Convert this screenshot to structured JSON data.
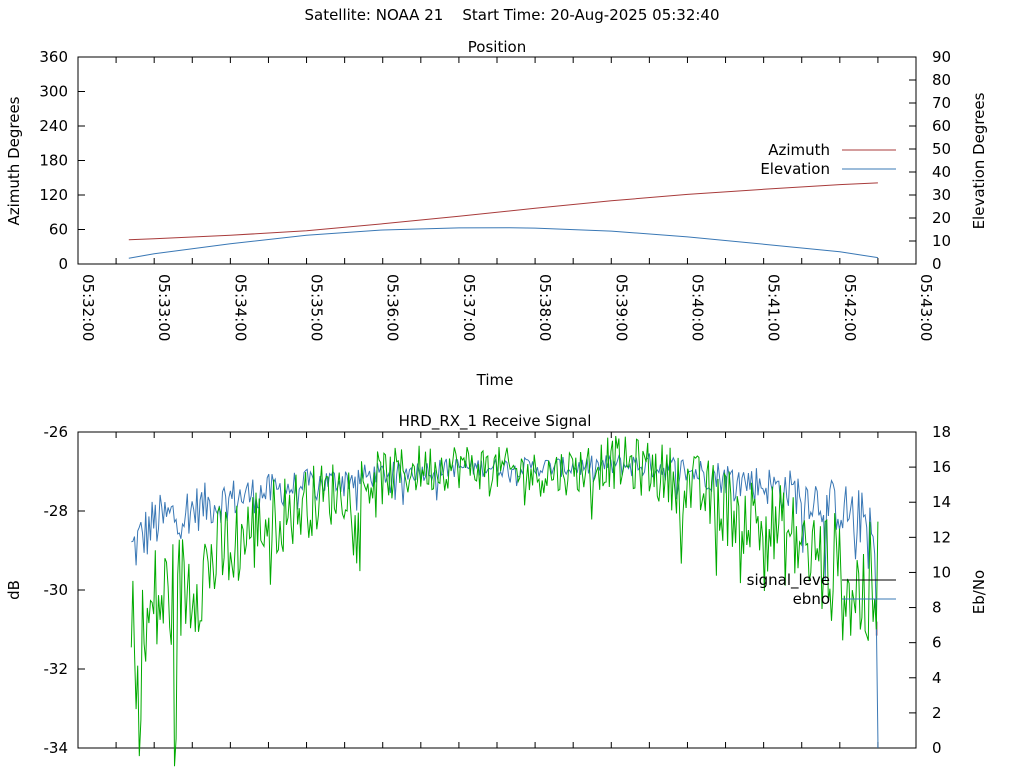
{
  "header": {
    "satellite": "Satellite: NOAA 21",
    "start_time": "Start Time: 20-Aug-2025 05:32:40"
  },
  "chart_data": [
    {
      "type": "line",
      "title": "Position",
      "xlabel": "Time",
      "ylabel": "Azimuth Degrees",
      "y2label": "Elevation Degrees",
      "xlim": [
        "05:32:00",
        "05:43:00"
      ],
      "xticks": [
        "05:32:00",
        "05:33:00",
        "05:34:00",
        "05:35:00",
        "05:36:00",
        "05:37:00",
        "05:38:00",
        "05:39:00",
        "05:40:00",
        "05:41:00",
        "05:42:00",
        "05:43:00"
      ],
      "ylim": [
        0,
        360
      ],
      "yticks": [
        0,
        60,
        120,
        180,
        240,
        300,
        360
      ],
      "y2lim": [
        0,
        90
      ],
      "y2ticks": [
        0,
        10,
        20,
        30,
        40,
        50,
        60,
        70,
        80,
        90
      ],
      "legend_position": "right",
      "series": [
        {
          "name": "Azimuth",
          "axis": "left",
          "color": "#a83b3b",
          "x": [
            "05:32:40",
            "05:33:00",
            "05:34:00",
            "05:35:00",
            "05:36:00",
            "05:37:00",
            "05:38:00",
            "05:39:00",
            "05:40:00",
            "05:41:00",
            "05:42:00",
            "05:42:30"
          ],
          "y": [
            42,
            44,
            50,
            58,
            70,
            83,
            97,
            110,
            121,
            130,
            138,
            141
          ]
        },
        {
          "name": "Elevation",
          "axis": "right",
          "color": "#3a78b5",
          "x": [
            "05:32:40",
            "05:33:00",
            "05:34:00",
            "05:35:00",
            "05:36:00",
            "05:37:00",
            "05:37:40",
            "05:38:00",
            "05:39:00",
            "05:40:00",
            "05:41:00",
            "05:42:00",
            "05:42:30"
          ],
          "y": [
            2.5,
            4.5,
            8.8,
            12.5,
            14.8,
            15.7,
            15.8,
            15.6,
            14.3,
            11.8,
            8.6,
            5.3,
            2.8
          ]
        }
      ]
    },
    {
      "type": "line",
      "title": "HRD_RX_1 Receive Signal",
      "ylabel": "dB",
      "y2label": "Eb/No",
      "xlim": [
        "05:32:00",
        "05:43:00"
      ],
      "ylim": [
        -34,
        -26
      ],
      "yticks": [
        -34,
        -32,
        -30,
        -28,
        -26
      ],
      "y2lim": [
        0,
        18
      ],
      "y2ticks": [
        0,
        2,
        4,
        6,
        8,
        10,
        12,
        14,
        16,
        18
      ],
      "legend_position": "right",
      "series": [
        {
          "name": "signal_leve",
          "axis": "left",
          "color": "#000000",
          "x": [
            "05:42:29"
          ],
          "y": [
            -30.8
          ]
        },
        {
          "name": "ebno",
          "axis": "right",
          "color": "#3a78b5",
          "x": [
            "05:32:42",
            "05:33:00",
            "05:33:30",
            "05:34:00",
            "05:34:30",
            "05:35:00",
            "05:35:30",
            "05:36:00",
            "05:36:30",
            "05:37:00",
            "05:37:30",
            "05:38:00",
            "05:38:30",
            "05:39:00",
            "05:39:30",
            "05:40:00",
            "05:40:30",
            "05:41:00",
            "05:41:30",
            "05:42:00",
            "05:42:20",
            "05:42:28",
            "05:42:30"
          ],
          "y": [
            11.2,
            12.8,
            13.6,
            14.2,
            14.6,
            15.0,
            15.3,
            15.6,
            15.8,
            16.0,
            16.0,
            16.0,
            16.0,
            16.1,
            16.1,
            15.8,
            15.4,
            15.0,
            14.5,
            13.7,
            13.0,
            11.0,
            0
          ]
        },
        {
          "name": "",
          "axis": "right",
          "color": "#00aa00",
          "x": [
            "05:32:42",
            "05:32:50",
            "05:33:00",
            "05:33:30",
            "05:34:00",
            "05:34:30",
            "05:35:00",
            "05:35:30",
            "05:36:00",
            "05:36:30",
            "05:37:00",
            "05:37:30",
            "05:38:00",
            "05:38:30",
            "05:39:00",
            "05:39:30",
            "05:40:00",
            "05:40:30",
            "05:41:00",
            "05:41:30",
            "05:42:00",
            "05:42:20",
            "05:42:30"
          ],
          "y": [
            6.2,
            5.5,
            8.0,
            9.5,
            11.5,
            13.0,
            14.0,
            14.8,
            15.4,
            15.9,
            16.1,
            15.9,
            15.6,
            15.8,
            16.3,
            15.9,
            15.0,
            13.8,
            12.8,
            11.5,
            9.8,
            8.5,
            9.5
          ]
        }
      ]
    }
  ]
}
